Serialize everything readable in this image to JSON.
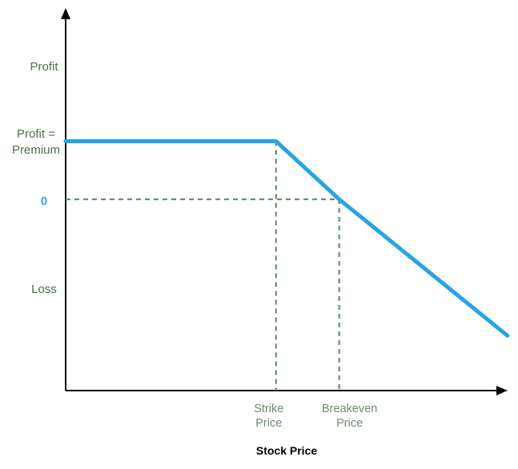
{
  "chart_data": {
    "type": "line",
    "title": "",
    "xlabel": "Stock Price",
    "ylabel": "",
    "y_tick_labels": [
      {
        "id": "profit",
        "lines": [
          "Profit"
        ]
      },
      {
        "id": "premium",
        "lines": [
          "Profit =",
          "Premium"
        ]
      },
      {
        "id": "zero",
        "lines": [
          "0"
        ]
      },
      {
        "id": "loss",
        "lines": [
          "Loss"
        ]
      }
    ],
    "x_tick_labels": [
      {
        "id": "strike",
        "lines": [
          "Strike",
          "Price"
        ]
      },
      {
        "id": "breakeven",
        "lines": [
          "Breakeven",
          "Price"
        ]
      }
    ],
    "series": [
      {
        "points": [
          {
            "x": 0,
            "y": 1
          },
          {
            "x": 1,
            "y": 1
          },
          {
            "x": 1.3,
            "y": 0
          },
          {
            "x": 2.1,
            "y": -2.35
          }
        ]
      }
    ],
    "guides": {
      "zero_line_to_x": 1.3,
      "strike_x": 1.0,
      "breakeven_x": 1.3
    },
    "colors": {
      "payoff": "#29a3e8",
      "guides": "#6b8f6b",
      "axes": "#000000",
      "zero_label": "#29a3e8",
      "y_labels": "#4a6f4a",
      "x_labels": "#6f8a6f"
    }
  }
}
